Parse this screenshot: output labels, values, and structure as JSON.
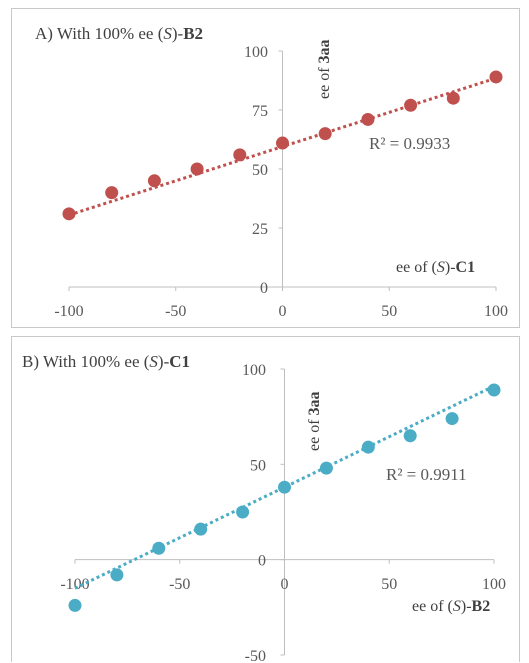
{
  "chart_data": [
    {
      "type": "scatter",
      "title": "A) With 100% ee (S)-B2",
      "title_parts": {
        "prefix": "A) With 100% ee (",
        "italic": "S",
        "mid": ")-",
        "bold": "B2"
      },
      "xlabel_parts": {
        "prefix": "ee of (",
        "italic": "S",
        "mid": ")-",
        "bold": "C1"
      },
      "ylabel_parts": {
        "prefix": "ee of ",
        "bold": "3aa"
      },
      "xlim": [
        -100,
        100
      ],
      "ylim": [
        0,
        100
      ],
      "x_ticks": [
        "-100",
        "-50",
        "0",
        "50",
        "100"
      ],
      "y_ticks": [
        "0",
        "25",
        "50",
        "75",
        "100"
      ],
      "trendline": {
        "type": "linear",
        "r2_label": "R² = 0.9933",
        "slope": 0.29,
        "intercept": 59.5
      },
      "series": [
        {
          "color": "#c0504d",
          "points": [
            [
              -100,
              31
            ],
            [
              -80,
              40
            ],
            [
              -60,
              45
            ],
            [
              -40,
              50
            ],
            [
              -20,
              56
            ],
            [
              0,
              61
            ],
            [
              20,
              65
            ],
            [
              40,
              71
            ],
            [
              60,
              77
            ],
            [
              80,
              80
            ],
            [
              100,
              89
            ]
          ]
        }
      ],
      "grid": false,
      "legend": "none"
    },
    {
      "type": "scatter",
      "title": "B) With 100% ee (S)-C1",
      "title_parts": {
        "prefix": "B) With 100% ee (",
        "italic": "S",
        "mid": ")-",
        "bold": "C1"
      },
      "xlabel_parts": {
        "prefix": "ee of (",
        "italic": "S",
        "mid": ")-",
        "bold": "B2"
      },
      "ylabel_parts": {
        "prefix": "ee of ",
        "bold": "3aa"
      },
      "xlim": [
        -100,
        100
      ],
      "ylim": [
        -50,
        100
      ],
      "x_ticks": [
        "-100",
        "-50",
        "0",
        "50",
        "100"
      ],
      "y_ticks": [
        "-50",
        "0",
        "50",
        "100"
      ],
      "trendline": {
        "type": "linear",
        "r2_label": "R² = 0.9911",
        "slope": 0.53,
        "intercept": 38
      },
      "series": [
        {
          "color": "#4bacc6",
          "points": [
            [
              -100,
              -24
            ],
            [
              -80,
              -8
            ],
            [
              -60,
              6
            ],
            [
              -40,
              16
            ],
            [
              -20,
              25
            ],
            [
              0,
              38
            ],
            [
              20,
              48
            ],
            [
              40,
              59
            ],
            [
              60,
              65
            ],
            [
              80,
              74
            ],
            [
              100,
              89
            ]
          ]
        }
      ],
      "grid": false,
      "legend": "none"
    }
  ]
}
